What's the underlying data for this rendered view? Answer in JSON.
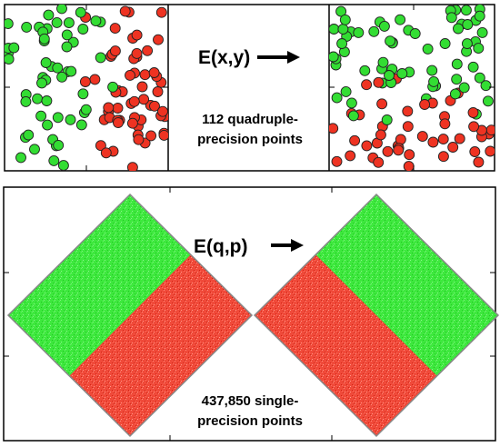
{
  "top_panel": {
    "map_label": "E(x,y)",
    "caption_line1": "112 quadruple-",
    "caption_line2": "precision points"
  },
  "bottom_panel": {
    "map_label": "E(q,p)",
    "caption_line1": "437,850 single-",
    "caption_line2": "precision points"
  },
  "colors": {
    "green": "#33dd33",
    "red": "#ee3322",
    "frame": "#000000",
    "diamond_frame": "#888888"
  }
}
